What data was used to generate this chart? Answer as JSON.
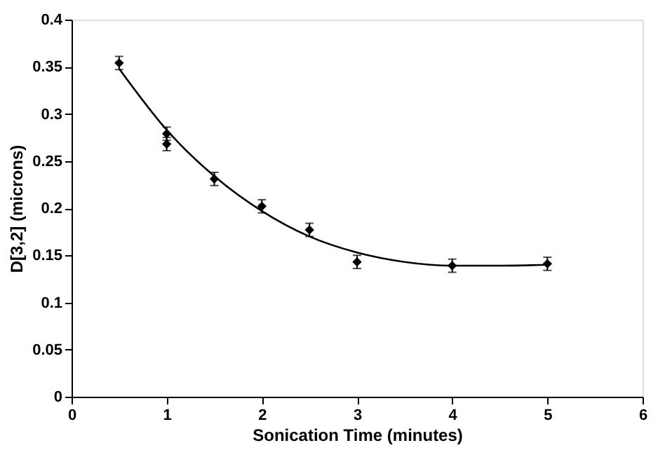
{
  "chart_data": {
    "type": "scatter",
    "xlabel": "Sonication Time (minutes)",
    "ylabel": "D[3,2] (microns)",
    "xlim": [
      0,
      6
    ],
    "xticks": [
      0,
      1,
      2,
      3,
      4,
      5,
      6
    ],
    "ylim": [
      0,
      0.4
    ],
    "yticks": [
      0,
      0.05,
      0.1,
      0.15,
      0.2,
      0.25,
      0.3,
      0.35,
      0.4
    ],
    "grid": false,
    "legend": false,
    "series": [
      {
        "type": "line",
        "color": "#000000",
        "marker": "none",
        "line_style": "solid",
        "x": [
          0.5,
          1,
          1.5,
          2,
          2.5,
          3,
          3.5,
          4,
          4.5,
          5
        ],
        "values": [
          0.348,
          0.283,
          0.234,
          0.197,
          0.17,
          0.153,
          0.143,
          0.139,
          0.139,
          0.14
        ]
      },
      {
        "color": "#000000",
        "marker": "diamond",
        "x": [
          0.5,
          1,
          1,
          1.5,
          2,
          2.5,
          3,
          4,
          5
        ],
        "values": [
          0.354,
          0.279,
          0.268,
          0.231,
          0.202,
          0.177,
          0.143,
          0.139,
          0.141
        ],
        "errors": [
          0.007,
          0.007,
          0.007,
          0.007,
          0.007,
          0.007,
          0.007,
          0.007,
          0.007
        ]
      }
    ]
  }
}
